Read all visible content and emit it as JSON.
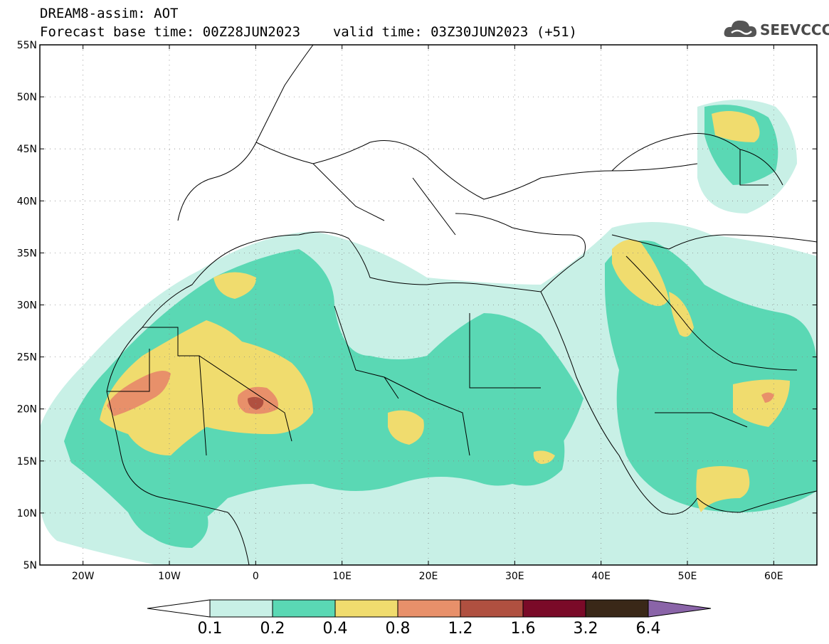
{
  "title": {
    "line1": "DREAM8-assim: AOT",
    "base_time": "Forecast base time: 00Z28JUN2023",
    "valid_time": "valid time: 03Z30JUN2023 (+51)"
  },
  "logo": {
    "text": "SEEVCCC",
    "icon": "cloud-logo-icon"
  },
  "map": {
    "lon_range": [
      -25,
      65
    ],
    "lat_range": [
      5,
      55
    ],
    "lat_ticks": [
      {
        "value": 55,
        "label": "55N"
      },
      {
        "value": 50,
        "label": "50N"
      },
      {
        "value": 45,
        "label": "45N"
      },
      {
        "value": 40,
        "label": "40N"
      },
      {
        "value": 35,
        "label": "35N"
      },
      {
        "value": 30,
        "label": "30N"
      },
      {
        "value": 25,
        "label": "25N"
      },
      {
        "value": 20,
        "label": "20N"
      },
      {
        "value": 15,
        "label": "15N"
      },
      {
        "value": 10,
        "label": "10N"
      },
      {
        "value": 5,
        "label": "5N"
      }
    ],
    "lon_ticks": [
      {
        "value": -20,
        "label": "20W"
      },
      {
        "value": -10,
        "label": "10W"
      },
      {
        "value": 0,
        "label": "0"
      },
      {
        "value": 10,
        "label": "10E"
      },
      {
        "value": 20,
        "label": "20E"
      },
      {
        "value": 30,
        "label": "30E"
      },
      {
        "value": 40,
        "label": "40E"
      },
      {
        "value": 50,
        "label": "50E"
      },
      {
        "value": 60,
        "label": "60E"
      }
    ],
    "grid": "dotted",
    "colorbar": {
      "labels": [
        "0.1",
        "0.2",
        "0.4",
        "0.8",
        "1.2",
        "1.6",
        "3.2",
        "6.4"
      ],
      "colors": [
        "#c8f0e6",
        "#5ad8b4",
        "#f0dc6e",
        "#e8906a",
        "#b05040",
        "#7a0a28",
        "#3a2818"
      ],
      "under_color": "#ffffff",
      "over_color": "#8a64a8"
    }
  }
}
